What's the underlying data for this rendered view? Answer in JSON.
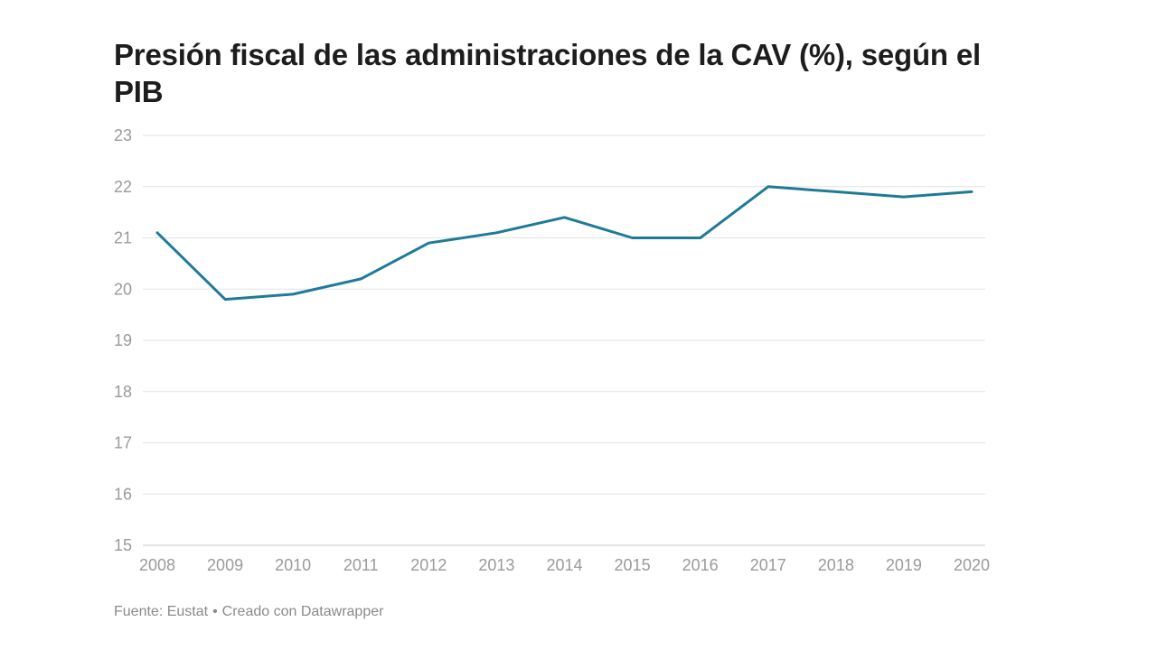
{
  "footer": {
    "source": "Fuente: Eustat",
    "separator": "•",
    "credit": "Creado con Datawrapper"
  },
  "colors": {
    "line": "#1f7a99",
    "title": "#1d1d1d",
    "axis_text": "#9a9a9a"
  },
  "chart_data": {
    "type": "line",
    "title": "Presión fiscal de las administraciones de la CAV (%), según el PIB",
    "xlabel": "",
    "ylabel": "",
    "x": [
      "2008",
      "2009",
      "2010",
      "2011",
      "2012",
      "2013",
      "2014",
      "2015",
      "2016",
      "2017",
      "2018",
      "2019",
      "2020"
    ],
    "series": [
      {
        "name": "Presión fiscal (%)",
        "values": [
          21.1,
          19.8,
          19.9,
          20.2,
          20.9,
          21.1,
          21.4,
          21.0,
          21.0,
          22.0,
          21.9,
          21.8,
          21.9
        ]
      }
    ],
    "ylim": [
      15,
      23
    ],
    "yticks": [
      15,
      16,
      17,
      18,
      19,
      20,
      21,
      22,
      23
    ],
    "grid": true,
    "legend": "none"
  }
}
